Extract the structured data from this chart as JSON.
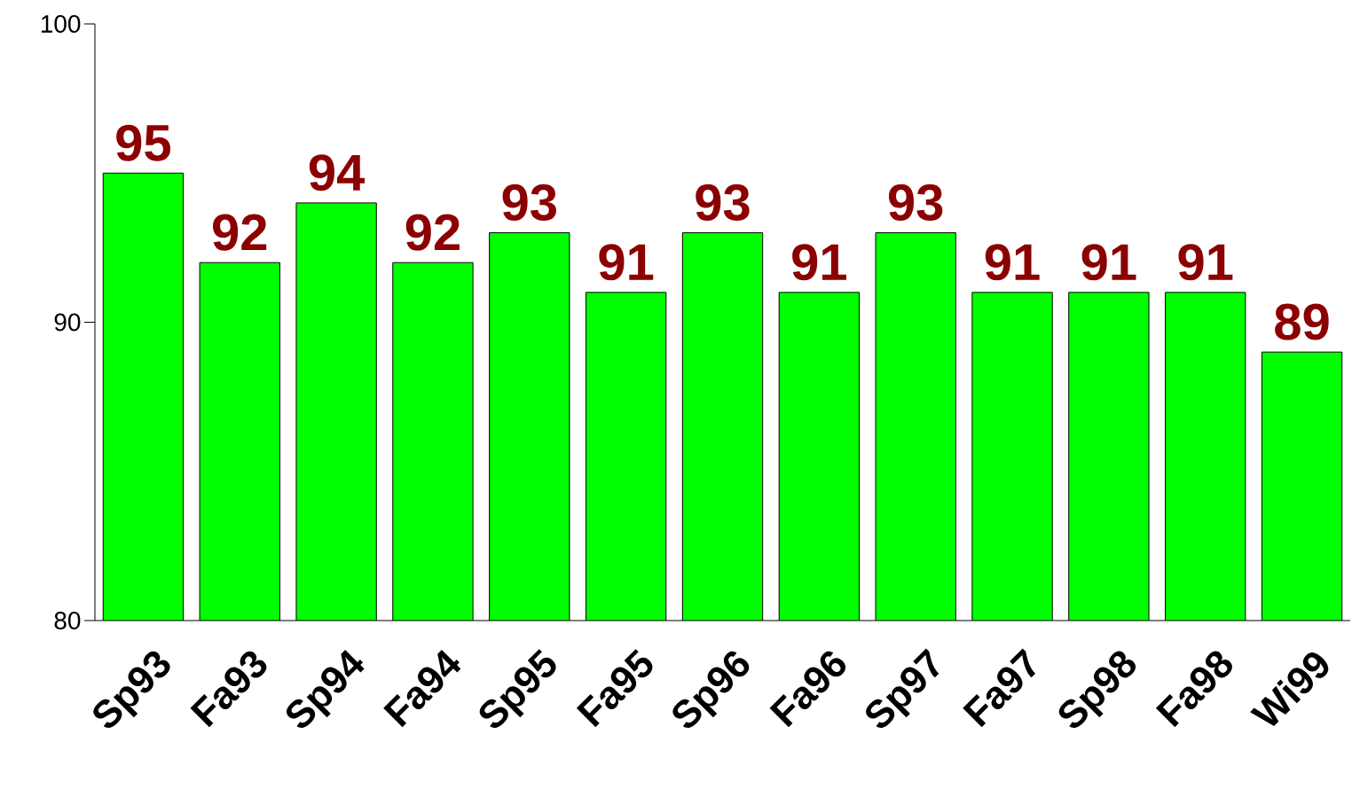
{
  "chart_data": {
    "type": "bar",
    "categories": [
      "Sp93",
      "Fa93",
      "Sp94",
      "Fa94",
      "Sp95",
      "Fa95",
      "Sp96",
      "Fa96",
      "Sp97",
      "Fa97",
      "Sp98",
      "Fa98",
      "Wi99"
    ],
    "values": [
      95,
      92,
      94,
      92,
      93,
      91,
      93,
      91,
      93,
      91,
      91,
      91,
      89
    ],
    "color": "#00ff00",
    "ylim": [
      80,
      100
    ],
    "yticks": [
      80,
      90,
      100
    ],
    "data_labels": true
  }
}
